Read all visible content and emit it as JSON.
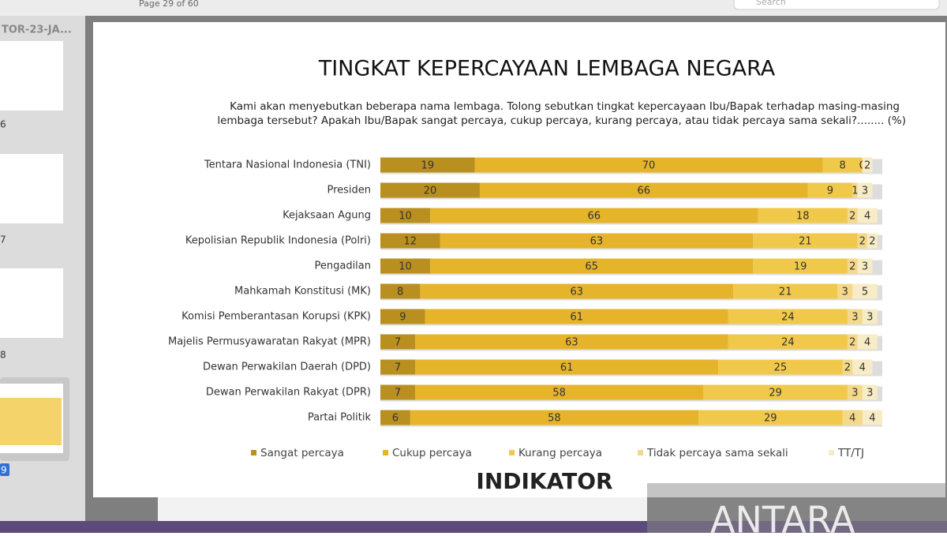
{
  "viewer": {
    "page_label": "Page 29 of 60",
    "search_placeholder": "Search",
    "sidebar_title": "TOR-23-JA...",
    "thumbnail_numbers": [
      "6",
      "7",
      "8",
      "9"
    ],
    "watermark": "ANTARA"
  },
  "chart_data": {
    "type": "stacked-bar-horizontal",
    "title": "TINGKAT KEPERCAYAAN LEMBAGA NEGARA",
    "subtitle": [
      "Kami akan menyebutkan beberapa nama lembaga. Tolong sebutkan tingkat kepercayaan Ibu/Bapak terhadap masing-masing",
      "lembaga tersebut? Apakah Ibu/Bapak sangat percaya, cukup percaya, kurang percaya, atau tidak percaya sama sekali?........ (%)"
    ],
    "logo": "INDIKATOR",
    "categories": [
      "Tentara Nasional Indonesia (TNI)",
      "Presiden",
      "Kejaksaan Agung",
      "Kepolisian Republik Indonesia (Polri)",
      "Pengadilan",
      "Mahkamah Konstitusi (MK)",
      "Komisi Pemberantasan Korupsi (KPK)",
      "Majelis Permusyawaratan Rakyat (MPR)",
      "Dewan Perwakilan Daerah (DPD)",
      "Dewan Perwakilan Rakyat (DPR)",
      "Partai Politik"
    ],
    "xlim": [
      0,
      101
    ],
    "series": [
      {
        "name": "Sangat percaya",
        "color": "#b98f1f",
        "values": [
          19,
          20,
          10,
          12,
          10,
          8,
          9,
          7,
          7,
          7,
          6
        ]
      },
      {
        "name": "Cukup percaya",
        "color": "#e5b42a",
        "values": [
          70,
          66,
          66,
          63,
          65,
          63,
          61,
          63,
          61,
          58,
          58
        ]
      },
      {
        "name": "Kurang percaya",
        "color": "#f1c94a",
        "values": [
          8,
          9,
          18,
          21,
          19,
          21,
          24,
          24,
          25,
          29,
          29
        ]
      },
      {
        "name": "Tidak percaya sama sekali",
        "color": "#f4d98a",
        "values": [
          0,
          1,
          2,
          2,
          2,
          3,
          3,
          2,
          2,
          3,
          4
        ]
      },
      {
        "name": "TT/TJ",
        "color": "#f8ecc6",
        "values": [
          2,
          3,
          4,
          2,
          3,
          5,
          3,
          4,
          4,
          3,
          4
        ]
      }
    ]
  }
}
